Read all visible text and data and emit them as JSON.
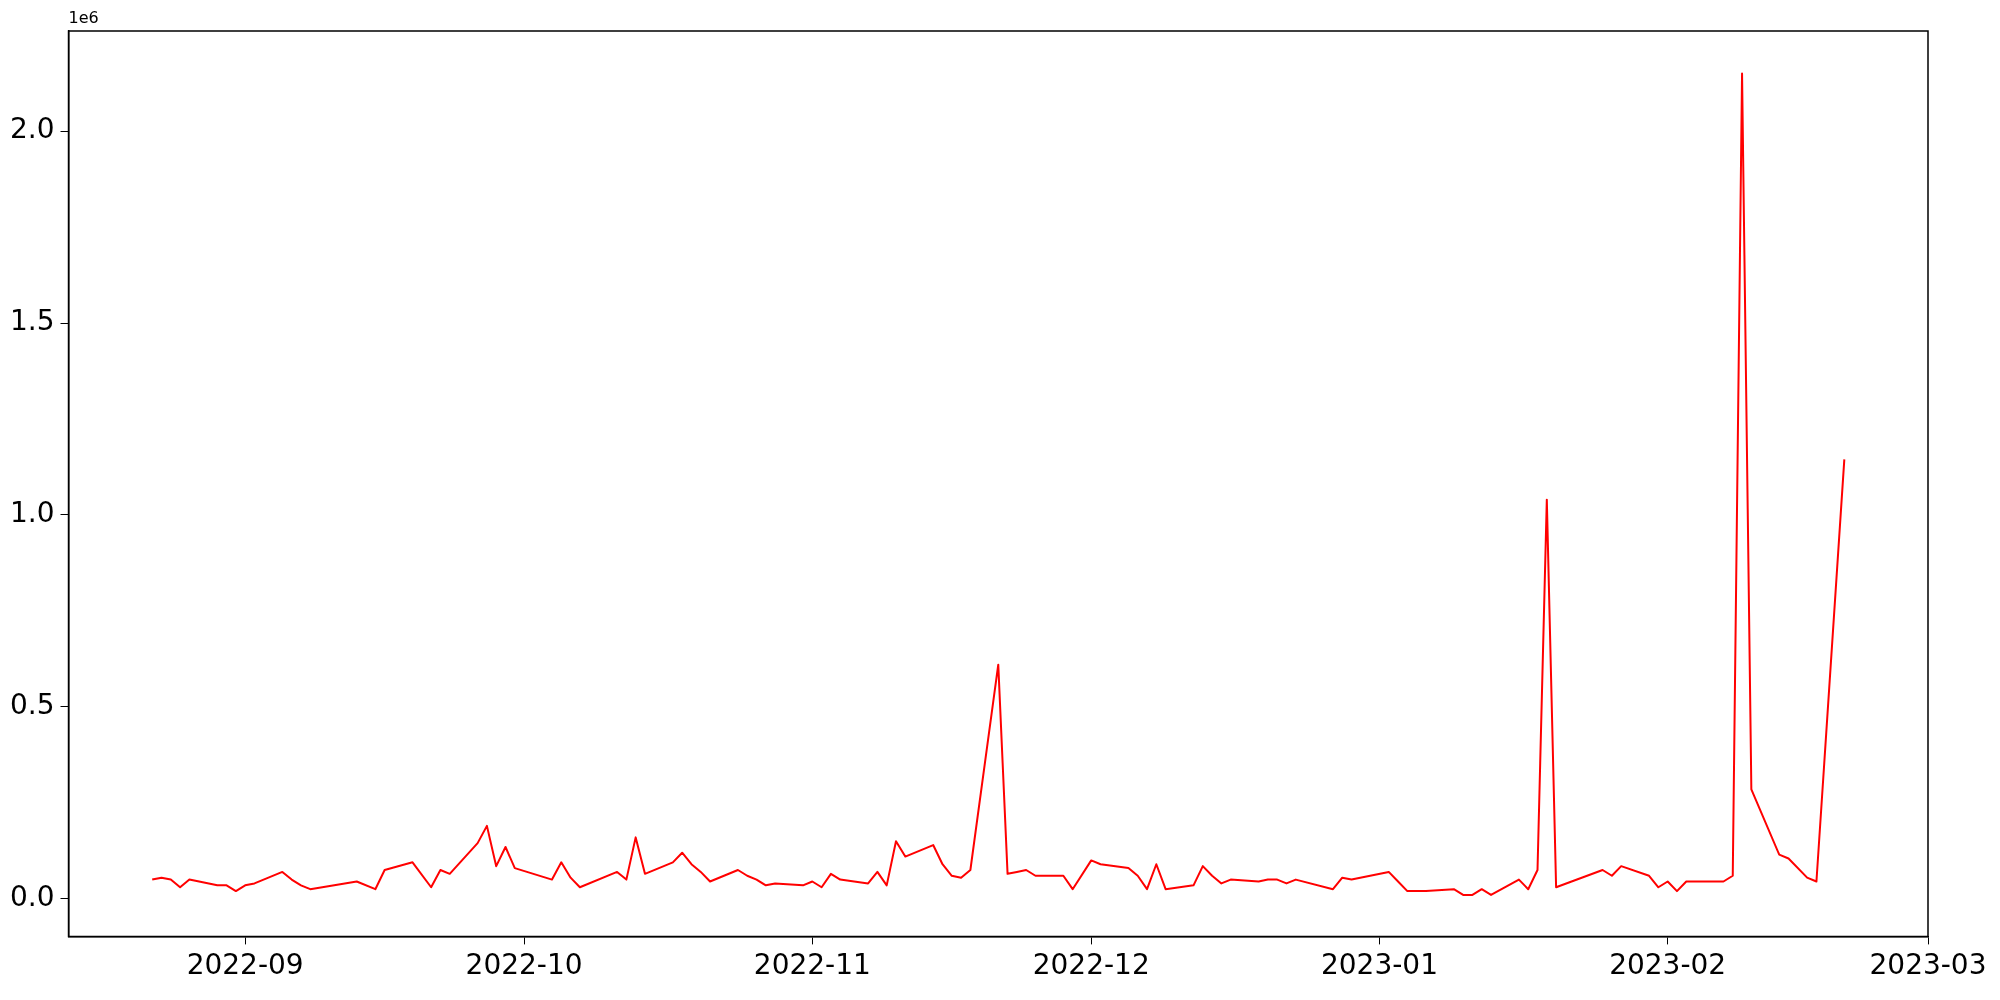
{
  "chart_data": {
    "type": "line",
    "annotations": [
      "1e6"
    ],
    "x": [
      "2022-08-22",
      "2022-08-23",
      "2022-08-24",
      "2022-08-25",
      "2022-08-26",
      "2022-08-29",
      "2022-08-30",
      "2022-08-31",
      "2022-09-01",
      "2022-09-02",
      "2022-09-05",
      "2022-09-06",
      "2022-09-07",
      "2022-09-08",
      "2022-09-13",
      "2022-09-15",
      "2022-09-16",
      "2022-09-19",
      "2022-09-21",
      "2022-09-22",
      "2022-09-23",
      "2022-09-26",
      "2022-09-27",
      "2022-09-28",
      "2022-09-29",
      "2022-09-30",
      "2022-10-04",
      "2022-10-05",
      "2022-10-06",
      "2022-10-07",
      "2022-10-11",
      "2022-10-12",
      "2022-10-13",
      "2022-10-14",
      "2022-10-17",
      "2022-10-18",
      "2022-10-19",
      "2022-10-20",
      "2022-10-21",
      "2022-10-24",
      "2022-10-25",
      "2022-10-26",
      "2022-10-27",
      "2022-10-28",
      "2022-10-31",
      "2022-11-01",
      "2022-11-02",
      "2022-11-03",
      "2022-11-04",
      "2022-11-07",
      "2022-11-08",
      "2022-11-09",
      "2022-11-10",
      "2022-11-11",
      "2022-11-14",
      "2022-11-15",
      "2022-11-16",
      "2022-11-17",
      "2022-11-18",
      "2022-11-21",
      "2022-11-22",
      "2022-11-23",
      "2022-11-24",
      "2022-11-25",
      "2022-11-28",
      "2022-11-29",
      "2022-12-01",
      "2022-12-02",
      "2022-12-05",
      "2022-12-06",
      "2022-12-07",
      "2022-12-08",
      "2022-12-09",
      "2022-12-12",
      "2022-12-13",
      "2022-12-14",
      "2022-12-15",
      "2022-12-16",
      "2022-12-19",
      "2022-12-20",
      "2022-12-21",
      "2022-12-22",
      "2022-12-23",
      "2022-12-27",
      "2022-12-28",
      "2022-12-29",
      "2023-01-02",
      "2023-01-03",
      "2023-01-04",
      "2023-01-06",
      "2023-01-09",
      "2023-01-10",
      "2023-01-11",
      "2023-01-12",
      "2023-01-13",
      "2023-01-16",
      "2023-01-17",
      "2023-01-18",
      "2023-01-19",
      "2023-01-20",
      "2023-01-25",
      "2023-01-26",
      "2023-01-27",
      "2023-01-30",
      "2023-01-31",
      "2023-02-01",
      "2023-02-02",
      "2023-02-03",
      "2023-02-07",
      "2023-02-08",
      "2023-02-09",
      "2023-02-10",
      "2023-02-13",
      "2023-02-14",
      "2023-02-16",
      "2023-02-17",
      "2023-02-20"
    ],
    "series": [
      {
        "color": "#ff0000",
        "values": [
          0.05,
          0.055,
          0.05,
          0.03,
          0.05,
          0.035,
          0.035,
          0.02,
          0.035,
          0.04,
          0.07,
          0.05,
          0.035,
          0.025,
          0.045,
          0.025,
          0.075,
          0.095,
          0.03,
          0.075,
          0.065,
          0.145,
          0.19,
          0.085,
          0.135,
          0.08,
          0.05,
          0.095,
          0.055,
          0.03,
          0.07,
          0.05,
          0.16,
          0.065,
          0.095,
          0.12,
          0.09,
          0.07,
          0.045,
          0.075,
          0.06,
          0.05,
          0.035,
          0.04,
          0.035,
          0.045,
          0.03,
          0.065,
          0.05,
          0.04,
          0.07,
          0.035,
          0.15,
          0.11,
          0.14,
          0.09,
          0.06,
          0.055,
          0.075,
          0.61,
          0.065,
          0.07,
          0.075,
          0.06,
          0.06,
          0.025,
          0.1,
          0.09,
          0.08,
          0.06,
          0.025,
          0.09,
          0.025,
          0.035,
          0.085,
          0.06,
          0.04,
          0.05,
          0.045,
          0.05,
          0.05,
          0.04,
          0.05,
          0.025,
          0.055,
          0.05,
          0.07,
          0.045,
          0.02,
          0.02,
          0.025,
          0.01,
          0.01,
          0.025,
          0.01,
          0.05,
          0.025,
          0.075,
          1.04,
          0.03,
          0.075,
          0.06,
          0.085,
          0.06,
          0.03,
          0.045,
          0.02,
          0.045,
          0.045,
          0.06,
          2.15,
          0.285,
          0.115,
          0.105,
          0.055,
          0.045,
          1.145
        ]
      }
    ],
    "xlim": [
      "2022-08-13",
      "2023-03-01"
    ],
    "xticks": [
      {
        "value": "2022-09-01",
        "label": "2022-09"
      },
      {
        "value": "2022-10-01",
        "label": "2022-10"
      },
      {
        "value": "2022-11-01",
        "label": "2022-11"
      },
      {
        "value": "2022-12-01",
        "label": "2022-12"
      },
      {
        "value": "2023-01-01",
        "label": "2023-01"
      },
      {
        "value": "2023-02-01",
        "label": "2023-02"
      },
      {
        "value": "2023-03-01",
        "label": "2023-03"
      }
    ],
    "ylim": [
      -0.098,
      2.261
    ],
    "yticks": [
      {
        "value": 0,
        "label": "0.0"
      },
      {
        "value": 0.5,
        "label": "0.5"
      },
      {
        "value": 1,
        "label": "1.0"
      },
      {
        "value": 1.5,
        "label": "1.5"
      },
      {
        "value": 2,
        "label": "2.0"
      }
    ],
    "grid": false,
    "legend": false,
    "marker": "none",
    "line_style": "solid"
  }
}
